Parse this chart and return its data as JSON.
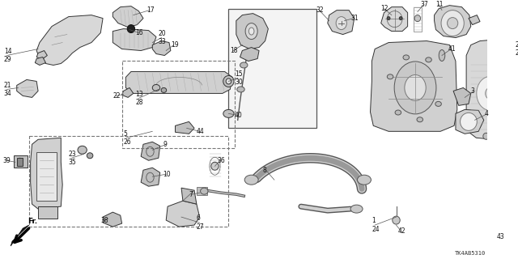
{
  "bg_color": "#ffffff",
  "fig_width": 6.4,
  "fig_height": 3.2,
  "watermark": "TK4AB5310",
  "label_color": "#111111",
  "label_fs": 5.5,
  "line_color": "#555555",
  "part_color": "#e8e8e8",
  "part_ec": "#333333",
  "part_lw": 0.7
}
